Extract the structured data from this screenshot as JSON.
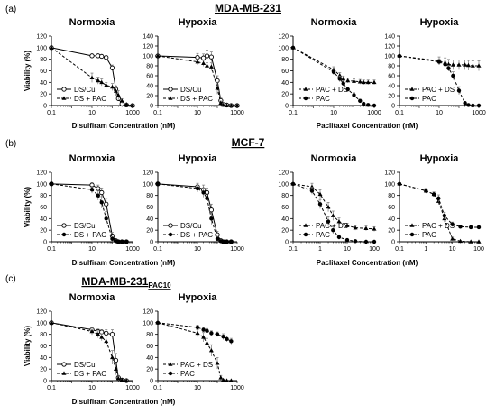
{
  "figure": {
    "sections": [
      {
        "label": "(a)",
        "title": "MDA-MB-231",
        "title_sub": ""
      },
      {
        "label": "(b)",
        "title": "MCF-7",
        "title_sub": ""
      },
      {
        "label": "(c)",
        "title": "MDA-MB-231",
        "title_sub": "PAC10"
      }
    ]
  },
  "chart_data": [
    {
      "id": "a1",
      "section": 0,
      "type": "line",
      "title": "Normoxia",
      "ylabel": "Viability (%)",
      "xlabel": "",
      "x_scale": "log",
      "xlim": [
        0.1,
        1000
      ],
      "x_ticks": [
        0.1,
        10,
        1000
      ],
      "ylim": [
        0,
        120
      ],
      "y_ticks": [
        0,
        20,
        40,
        60,
        80,
        100,
        120
      ],
      "legend_position": "bottom-left",
      "series": [
        {
          "name": "DS/Cu",
          "style": "solid",
          "marker": "open-circle",
          "x": [
            0.1,
            10,
            20,
            30,
            50,
            100,
            150,
            200,
            300,
            500,
            1000
          ],
          "y": [
            100,
            86,
            86,
            85,
            83,
            65,
            28,
            12,
            3,
            1,
            0
          ],
          "err": [
            0,
            2,
            2,
            2,
            3,
            5,
            6,
            4,
            2,
            1,
            0
          ]
        },
        {
          "name": "DS + PAC",
          "style": "dashed",
          "marker": "filled-triangle",
          "x": [
            0.1,
            10,
            20,
            30,
            50,
            100,
            150,
            200,
            300,
            500,
            1000
          ],
          "y": [
            100,
            48,
            43,
            40,
            35,
            32,
            25,
            18,
            8,
            2,
            0
          ],
          "err": [
            0,
            8,
            6,
            6,
            5,
            6,
            8,
            8,
            4,
            2,
            0
          ]
        }
      ]
    },
    {
      "id": "a2",
      "section": 0,
      "type": "line",
      "title": "Hypoxia",
      "ylabel": "",
      "xlabel": "",
      "x_scale": "log",
      "xlim": [
        0.1,
        1000
      ],
      "x_ticks": [
        0.1,
        10,
        1000
      ],
      "ylim": [
        0,
        140
      ],
      "y_ticks": [
        0,
        20,
        40,
        60,
        80,
        100,
        120,
        140
      ],
      "legend_position": "bottom-left",
      "series": [
        {
          "name": "DS/Cu",
          "style": "solid",
          "marker": "open-circle",
          "x": [
            0.1,
            10,
            20,
            30,
            50,
            100,
            150,
            200,
            300,
            500,
            1000
          ],
          "y": [
            100,
            97,
            96,
            100,
            98,
            50,
            10,
            2,
            1,
            0,
            0
          ],
          "err": [
            0,
            8,
            8,
            12,
            10,
            10,
            5,
            2,
            1,
            0,
            0
          ]
        },
        {
          "name": "DS + PAC",
          "style": "dashed",
          "marker": "filled-triangle",
          "x": [
            0.1,
            10,
            20,
            30,
            50,
            100,
            150,
            200,
            300,
            500,
            1000
          ],
          "y": [
            100,
            88,
            85,
            80,
            78,
            35,
            5,
            1,
            0,
            0,
            0
          ],
          "err": [
            0,
            6,
            6,
            6,
            8,
            12,
            4,
            1,
            0,
            0,
            0
          ]
        }
      ]
    },
    {
      "id": "a3",
      "section": 0,
      "type": "line",
      "title": "Normoxia",
      "ylabel": "",
      "xlabel": "",
      "x_scale": "log",
      "xlim": [
        0.1,
        1000
      ],
      "x_ticks": [
        0.1,
        10,
        1000
      ],
      "ylim": [
        0,
        120
      ],
      "y_ticks": [
        0,
        20,
        40,
        60,
        80,
        100,
        120
      ],
      "legend_position": "bottom-left",
      "series": [
        {
          "name": "PAC + DS",
          "style": "dashed",
          "marker": "filled-triangle",
          "x": [
            0.1,
            10,
            20,
            30,
            50,
            100,
            200,
            300,
            500,
            1000
          ],
          "y": [
            100,
            62,
            52,
            46,
            43,
            42,
            41,
            40,
            40,
            40
          ],
          "err": [
            0,
            5,
            5,
            5,
            4,
            4,
            4,
            4,
            4,
            4
          ]
        },
        {
          "name": "PAC",
          "style": "dashed",
          "marker": "filled-circle",
          "x": [
            0.1,
            10,
            20,
            30,
            50,
            100,
            200,
            300,
            500,
            1000
          ],
          "y": [
            100,
            58,
            46,
            38,
            28,
            18,
            8,
            3,
            1,
            0
          ],
          "err": [
            0,
            5,
            5,
            4,
            4,
            4,
            3,
            2,
            1,
            0
          ]
        }
      ]
    },
    {
      "id": "a4",
      "section": 0,
      "type": "line",
      "title": "Hypoxia",
      "ylabel": "",
      "xlabel": "",
      "x_scale": "log",
      "xlim": [
        0.1,
        1000
      ],
      "x_ticks": [
        0.1,
        10,
        1000
      ],
      "ylim": [
        0,
        140
      ],
      "y_ticks": [
        0,
        20,
        40,
        60,
        80,
        100,
        120,
        140
      ],
      "legend_position": "bottom-left",
      "series": [
        {
          "name": "PAC + DS",
          "style": "dashed",
          "marker": "filled-triangle",
          "x": [
            0.1,
            10,
            20,
            30,
            50,
            100,
            200,
            300,
            500,
            1000
          ],
          "y": [
            100,
            90,
            86,
            83,
            82,
            82,
            82,
            81,
            80,
            80
          ],
          "err": [
            0,
            8,
            10,
            10,
            10,
            10,
            10,
            10,
            10,
            10
          ]
        },
        {
          "name": "PAC",
          "style": "dashed",
          "marker": "filled-circle",
          "x": [
            0.1,
            10,
            20,
            30,
            50,
            100,
            200,
            300,
            500,
            1000
          ],
          "y": [
            100,
            88,
            83,
            75,
            60,
            30,
            5,
            1,
            0,
            0
          ],
          "err": [
            0,
            6,
            6,
            6,
            8,
            8,
            3,
            1,
            0,
            0
          ]
        }
      ]
    },
    {
      "id": "b1",
      "section": 1,
      "type": "line",
      "title": "Normoxia",
      "ylabel": "Viability (%)",
      "xlabel": "",
      "x_scale": "log",
      "xlim": [
        0.1,
        1000
      ],
      "x_ticks": [
        0.1,
        10,
        1000
      ],
      "ylim": [
        0,
        120
      ],
      "y_ticks": [
        0,
        20,
        40,
        60,
        80,
        100,
        120
      ],
      "legend_position": "bottom-left",
      "series": [
        {
          "name": "DS/Cu",
          "style": "solid",
          "marker": "open-circle",
          "x": [
            0.1,
            10,
            20,
            30,
            50,
            100,
            150,
            200,
            300,
            500
          ],
          "y": [
            100,
            98,
            92,
            85,
            65,
            10,
            2,
            0,
            0,
            0
          ],
          "err": [
            0,
            4,
            6,
            8,
            10,
            6,
            2,
            0,
            0,
            0
          ]
        },
        {
          "name": "DS + PAC",
          "style": "dashed",
          "marker": "filled-circle",
          "x": [
            0.1,
            10,
            20,
            30,
            50,
            100,
            150,
            200,
            300,
            500
          ],
          "y": [
            100,
            90,
            80,
            68,
            40,
            5,
            1,
            0,
            0,
            0
          ],
          "err": [
            0,
            6,
            8,
            10,
            12,
            4,
            1,
            0,
            0,
            0
          ]
        }
      ]
    },
    {
      "id": "b2",
      "section": 1,
      "type": "line",
      "title": "Hypoxia",
      "ylabel": "",
      "xlabel": "",
      "x_scale": "log",
      "xlim": [
        0.1,
        1000
      ],
      "x_ticks": [
        0.1,
        10,
        1000
      ],
      "ylim": [
        0,
        120
      ],
      "y_ticks": [
        0,
        20,
        40,
        60,
        80,
        100,
        120
      ],
      "legend_position": "bottom-left",
      "series": [
        {
          "name": "DS/Cu",
          "style": "solid",
          "marker": "open-circle",
          "x": [
            0.1,
            10,
            20,
            30,
            50,
            100,
            150,
            200,
            300,
            500
          ],
          "y": [
            100,
            95,
            90,
            85,
            55,
            12,
            2,
            0,
            0,
            0
          ],
          "err": [
            0,
            6,
            8,
            8,
            10,
            6,
            2,
            0,
            0,
            0
          ]
        },
        {
          "name": "DS + PAC",
          "style": "dashed",
          "marker": "filled-circle",
          "x": [
            0.1,
            10,
            20,
            30,
            50,
            100,
            150,
            200,
            300,
            500
          ],
          "y": [
            100,
            92,
            85,
            75,
            40,
            5,
            1,
            0,
            0,
            0
          ],
          "err": [
            0,
            6,
            8,
            8,
            10,
            4,
            1,
            0,
            0,
            0
          ]
        }
      ]
    },
    {
      "id": "b3",
      "section": 1,
      "type": "line",
      "title": "Normoxia",
      "ylabel": "",
      "xlabel": "",
      "x_scale": "log",
      "xlim": [
        0.1,
        100
      ],
      "x_ticks": [
        0.1,
        1,
        10,
        100
      ],
      "ylim": [
        0,
        120
      ],
      "y_ticks": [
        0,
        20,
        40,
        60,
        80,
        100,
        120
      ],
      "legend_position": "bottom-left",
      "series": [
        {
          "name": "PAC + DS",
          "style": "dashed",
          "marker": "filled-triangle",
          "x": [
            0.1,
            0.5,
            1,
            2,
            3,
            5,
            10,
            20,
            50,
            100
          ],
          "y": [
            100,
            95,
            82,
            60,
            45,
            35,
            28,
            24,
            23,
            22
          ],
          "err": [
            0,
            6,
            8,
            8,
            8,
            6,
            4,
            4,
            4,
            4
          ]
        },
        {
          "name": "PAC",
          "style": "dashed",
          "marker": "filled-circle",
          "x": [
            0.1,
            0.5,
            1,
            2,
            3,
            5,
            10,
            20,
            50,
            100
          ],
          "y": [
            100,
            88,
            65,
            35,
            20,
            8,
            3,
            1,
            0,
            0
          ],
          "err": [
            0,
            6,
            8,
            8,
            6,
            4,
            2,
            1,
            0,
            0
          ]
        }
      ]
    },
    {
      "id": "b4",
      "section": 1,
      "type": "line",
      "title": "Hypoxia",
      "ylabel": "",
      "xlabel": "",
      "x_scale": "log",
      "xlim": [
        0.1,
        100
      ],
      "x_ticks": [
        0.1,
        1,
        10,
        100
      ],
      "ylim": [
        0,
        120
      ],
      "y_ticks": [
        0,
        20,
        40,
        60,
        80,
        100,
        120
      ],
      "legend_position": "bottom-left",
      "series": [
        {
          "name": "PAC + DS",
          "style": "dashed",
          "marker": "filled-triangle",
          "x": [
            0.1,
            1,
            2,
            3,
            5,
            10,
            20,
            50,
            100
          ],
          "y": [
            100,
            88,
            82,
            70,
            40,
            5,
            1,
            0,
            0
          ],
          "err": [
            0,
            4,
            4,
            6,
            6,
            3,
            1,
            0,
            0
          ]
        },
        {
          "name": "PAC",
          "style": "dashed",
          "marker": "filled-circle",
          "x": [
            0.1,
            1,
            2,
            3,
            5,
            10,
            20,
            50,
            100
          ],
          "y": [
            100,
            88,
            82,
            75,
            45,
            30,
            26,
            25,
            25
          ],
          "err": [
            0,
            4,
            4,
            6,
            6,
            4,
            3,
            3,
            3
          ]
        }
      ]
    },
    {
      "id": "c1",
      "section": 2,
      "type": "line",
      "title": "Normoxia",
      "ylabel": "Viability (%)",
      "xlabel": "",
      "x_scale": "log",
      "xlim": [
        0.1,
        1000
      ],
      "x_ticks": [
        0.1,
        10,
        1000
      ],
      "ylim": [
        0,
        120
      ],
      "y_ticks": [
        0,
        20,
        40,
        60,
        80,
        100,
        120
      ],
      "legend_position": "bottom-left",
      "series": [
        {
          "name": "DS/Cu",
          "style": "solid",
          "marker": "open-circle",
          "x": [
            0.1,
            10,
            20,
            30,
            50,
            100,
            150,
            200,
            300,
            500
          ],
          "y": [
            100,
            88,
            85,
            84,
            82,
            80,
            35,
            5,
            1,
            0
          ],
          "err": [
            0,
            4,
            4,
            4,
            6,
            8,
            12,
            4,
            1,
            0
          ]
        },
        {
          "name": "DS + PAC",
          "style": "dashed",
          "marker": "filled-triangle",
          "x": [
            0.1,
            10,
            20,
            30,
            50,
            100,
            150,
            200,
            300,
            500
          ],
          "y": [
            100,
            85,
            80,
            75,
            68,
            40,
            20,
            4,
            1,
            0
          ],
          "err": [
            0,
            6,
            6,
            6,
            10,
            12,
            10,
            4,
            1,
            0
          ]
        }
      ]
    },
    {
      "id": "c2",
      "section": 2,
      "type": "line",
      "title": "Hypoxia",
      "ylabel": "",
      "xlabel": "",
      "x_scale": "log",
      "xlim": [
        0.1,
        1000
      ],
      "x_ticks": [
        0.1,
        10,
        1000
      ],
      "ylim": [
        0,
        120
      ],
      "y_ticks": [
        0,
        20,
        40,
        60,
        80,
        100,
        120
      ],
      "legend_position": "bottom-left",
      "series": [
        {
          "name": "PAC + DS",
          "style": "dashed",
          "marker": "filled-triangle",
          "x": [
            0.1,
            10,
            20,
            30,
            50,
            100,
            150,
            200,
            300,
            500
          ],
          "y": [
            100,
            82,
            75,
            65,
            52,
            30,
            5,
            1,
            0,
            0
          ],
          "err": [
            0,
            6,
            8,
            8,
            10,
            10,
            4,
            1,
            0,
            0
          ]
        },
        {
          "name": "PAC",
          "style": "dashed",
          "marker": "filled-circle",
          "x": [
            0.1,
            10,
            20,
            30,
            50,
            100,
            200,
            300,
            500
          ],
          "y": [
            100,
            92,
            88,
            86,
            82,
            80,
            76,
            72,
            68
          ],
          "err": [
            0,
            4,
            4,
            4,
            4,
            4,
            5,
            5,
            5
          ]
        }
      ]
    }
  ],
  "xaxis_labels": [
    {
      "section": 0,
      "half": "left",
      "text": "Disulfiram Concentration (nM)"
    },
    {
      "section": 0,
      "half": "right",
      "text": "Paclitaxel Concentration (nM)"
    },
    {
      "section": 1,
      "half": "left",
      "text": "Disulfiram Concentration (nM)"
    },
    {
      "section": 1,
      "half": "right",
      "text": "Paclitaxel Concentration (nM)"
    },
    {
      "section": 2,
      "half": "left",
      "text": "Disulfiram Concentration (nM)"
    }
  ]
}
